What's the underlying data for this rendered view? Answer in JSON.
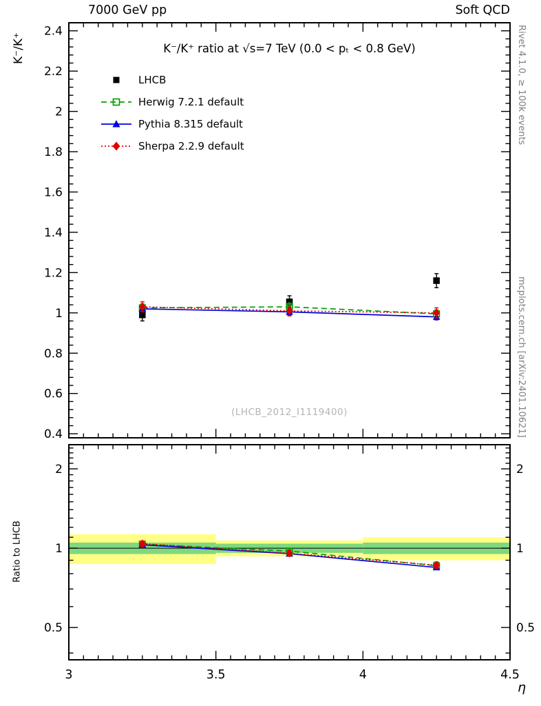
{
  "header": {
    "left": "7000 GeV pp",
    "right": "Soft QCD"
  },
  "right_margin": {
    "top_note": "Rivet 4.1.0, ≥ 100k events",
    "bottom_note": "mcplots.cern.ch [arXiv:2401.10621]"
  },
  "chart_data": {
    "type": "scatter-line",
    "title": "K⁻/K⁺ ratio at √s=7 TeV (0.0 < pₜ < 0.8 GeV)",
    "watermark": "(LHCB_2012_I1119400)",
    "xlabel": "η",
    "x_range": [
      3,
      4.5
    ],
    "xticks": [
      3,
      3.5,
      4,
      4.5
    ],
    "x": [
      3.25,
      3.75,
      4.25
    ],
    "bin_edges": [
      3,
      3.5,
      4,
      4.5
    ],
    "main": {
      "ylabel": "K⁻/K⁺",
      "ylim": [
        0.38,
        2.44
      ],
      "yticks": [
        0.4,
        0.6,
        0.8,
        1,
        1.2,
        1.4,
        1.6,
        1.8,
        2,
        2.2,
        2.4
      ],
      "series": [
        {
          "name": "LHCB",
          "color": "#000000",
          "marker": "square-filled",
          "line": null,
          "values": [
            0.99,
            1.055,
            1.16
          ],
          "errors": [
            0.03,
            0.03,
            0.035
          ]
        },
        {
          "name": "Herwig 7.2.1 default",
          "color": "#00a000",
          "marker": "square-open",
          "line": "dashed",
          "values": [
            1.025,
            1.03,
            0.995
          ],
          "errors": [
            0.02,
            0.02,
            0.02
          ]
        },
        {
          "name": "Pythia 8.315 default",
          "color": "#0000e0",
          "marker": "triangle-filled",
          "line": "solid",
          "values": [
            1.02,
            1.005,
            0.98
          ],
          "errors": [
            0.015,
            0.015,
            0.015
          ]
        },
        {
          "name": "Sherpa 2.2.9 default",
          "color": "#e00000",
          "marker": "diamond-filled",
          "line": "dotted",
          "values": [
            1.03,
            1.01,
            1.0
          ],
          "errors": [
            0.025,
            0.025,
            0.025
          ]
        }
      ]
    },
    "ratio": {
      "ylabel": "Ratio to LHCB",
      "scale": "log",
      "ylim": [
        0.377,
        2.47
      ],
      "yticks": [
        0.5,
        1,
        2
      ],
      "bands": {
        "yellow": {
          "color": "#ffff85",
          "ranges": [
            [
              0.87,
              1.13
            ],
            [
              0.93,
              1.07
            ],
            [
              0.9,
              1.1
            ]
          ]
        },
        "green": {
          "color": "#7fd87f",
          "ranges": [
            [
              0.95,
              1.05
            ],
            [
              0.96,
              1.04
            ],
            [
              0.95,
              1.05
            ]
          ]
        }
      },
      "series": [
        {
          "name": "Herwig 7.2.1 default",
          "values": [
            1.035,
            0.975,
            0.858
          ],
          "errors": [
            0.02,
            0.02,
            0.02
          ]
        },
        {
          "name": "Pythia 8.315 default",
          "values": [
            1.03,
            0.953,
            0.845
          ],
          "errors": [
            0.015,
            0.015,
            0.015
          ]
        },
        {
          "name": "Sherpa 2.2.9 default",
          "values": [
            1.04,
            0.957,
            0.862
          ],
          "errors": [
            0.025,
            0.025,
            0.025
          ]
        }
      ]
    }
  }
}
